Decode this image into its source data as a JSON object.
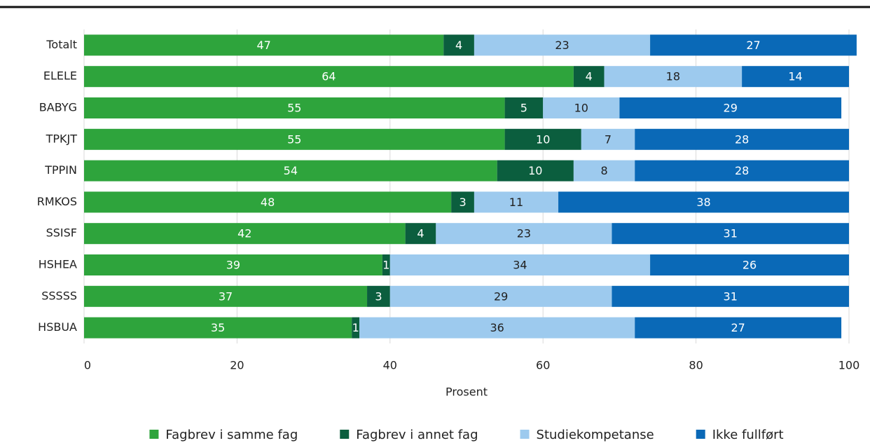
{
  "chart_data": {
    "type": "stacked-bar-horizontal",
    "categories": [
      "Totalt",
      "ELELE",
      "BABYG",
      "TPKJT",
      "TPPIN",
      "RMKOS",
      "SSISF",
      "HSHEA",
      "SSSSS",
      "HSBUA"
    ],
    "series": [
      {
        "name": "Fagbrev i samme fag",
        "color": "#2ea43c",
        "label_color": "#ffffff",
        "values": [
          47,
          64,
          55,
          55,
          54,
          48,
          42,
          39,
          37,
          35
        ]
      },
      {
        "name": "Fagbrev i annet fag",
        "color": "#0b5e3e",
        "label_color": "#ffffff",
        "values": [
          4,
          4,
          5,
          10,
          10,
          3,
          4,
          1,
          3,
          1
        ]
      },
      {
        "name": "Studiekompetanse",
        "color": "#9dcaee",
        "label_color": "#222222",
        "values": [
          23,
          18,
          10,
          7,
          8,
          11,
          23,
          34,
          29,
          36
        ]
      },
      {
        "name": "Ikke fullført",
        "color": "#0a69b7",
        "label_color": "#ffffff",
        "values": [
          27,
          14,
          29,
          28,
          28,
          38,
          31,
          26,
          31,
          27
        ]
      }
    ],
    "xlabel": "Prosent",
    "xlim": [
      0,
      100
    ],
    "xticks": [
      0,
      20,
      40,
      60,
      80,
      100
    ],
    "grid": true,
    "legend": "bottom"
  }
}
